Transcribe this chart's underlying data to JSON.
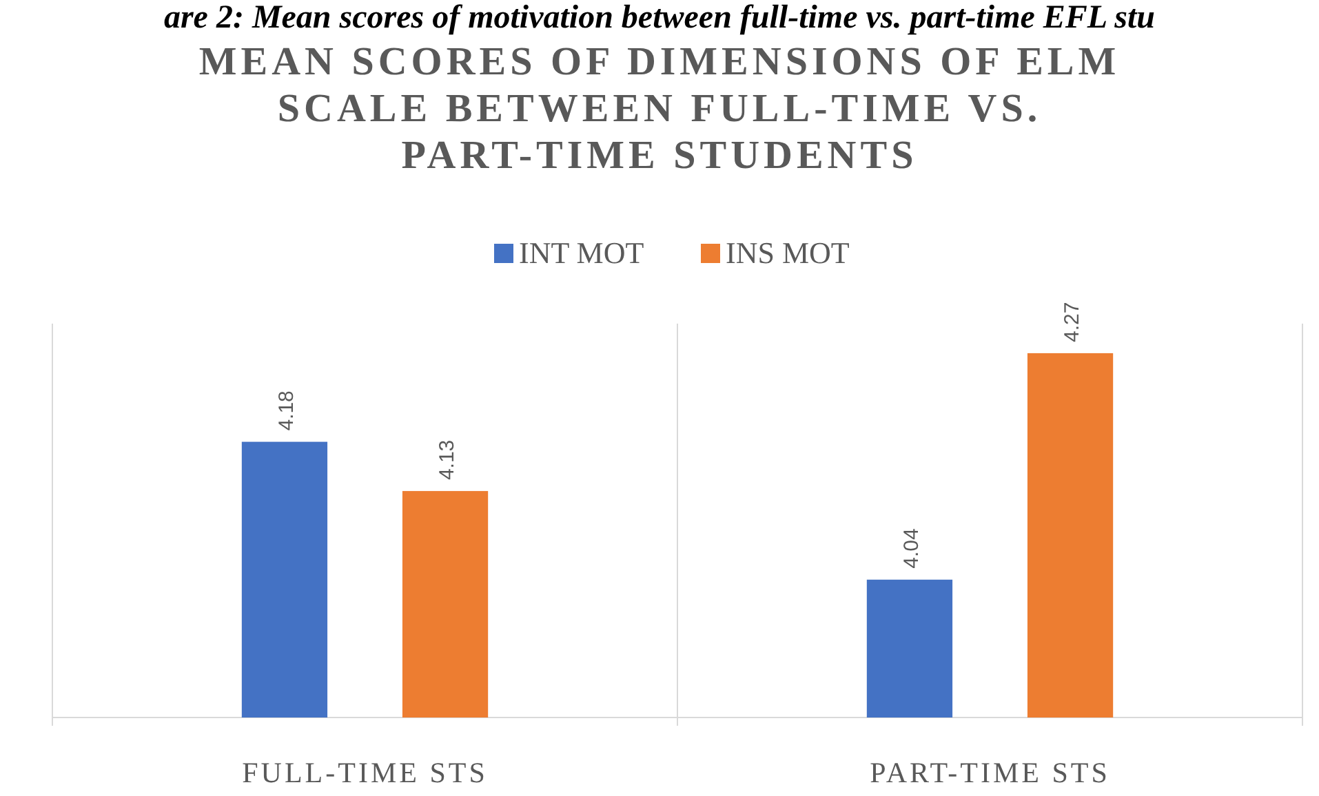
{
  "chart_data": {
    "type": "bar",
    "title": "MEAN SCORES OF DIMENSIONS OF ELM SCALE BETWEEN FULL-TIME VS. PART-TIME STUDENTS",
    "annotations": [
      "are 2: Mean scores of motivation between full-time vs. part-time EFL stu"
    ],
    "categories": [
      "FULL-TIME STS",
      "PART-TIME STS"
    ],
    "series": [
      {
        "name": "INT MOT",
        "color": "#4472c4",
        "values": [
          4.18,
          4.04
        ]
      },
      {
        "name": "INS MOT",
        "color": "#ed7d31",
        "values": [
          4.13,
          4.27
        ]
      }
    ],
    "ylim": [
      3.9,
      4.3
    ],
    "data_labels": true,
    "legend": "top"
  }
}
